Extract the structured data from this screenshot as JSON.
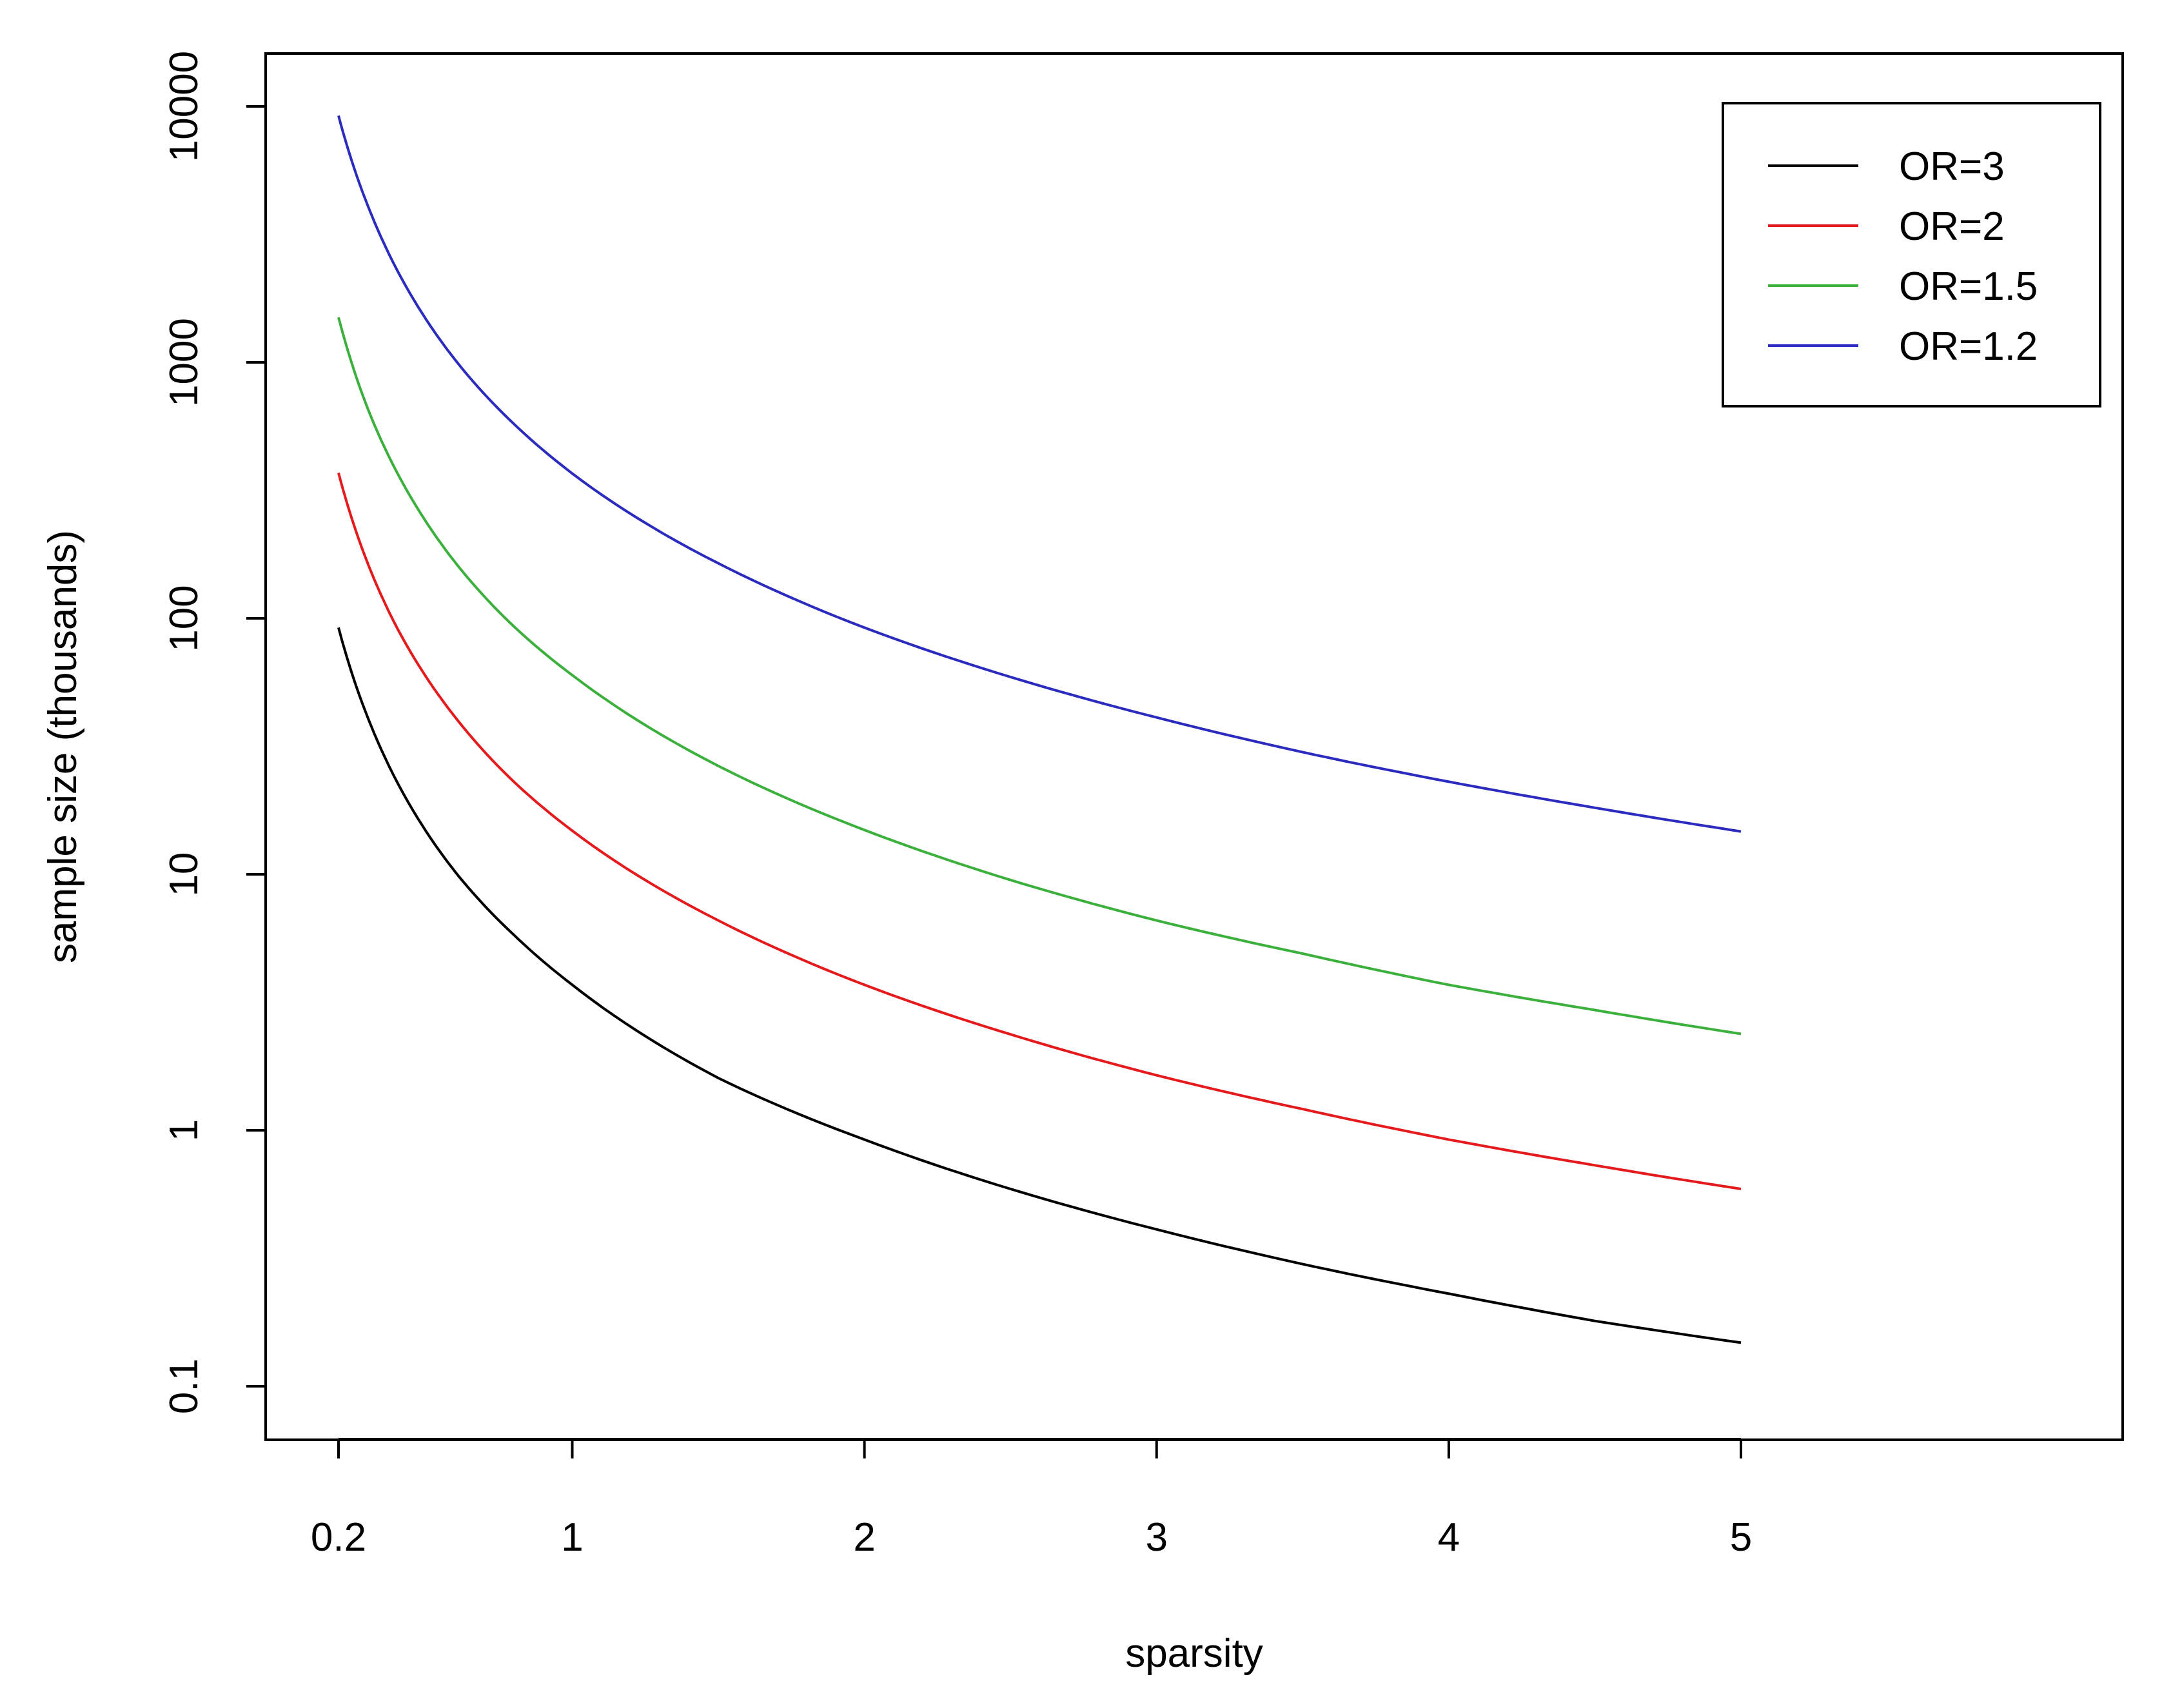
{
  "chart_data": {
    "type": "line",
    "title": "",
    "xlabel": "sparsity",
    "ylabel": "sample size (thousands)",
    "xlim": [
      0.2,
      5
    ],
    "ylim": [
      0.1,
      10000
    ],
    "yscale": "log",
    "grid": false,
    "legend_position": "top-right",
    "x_ticks": [
      0.2,
      1,
      2,
      3,
      4,
      5
    ],
    "x_tick_labels": [
      "0.2",
      "1",
      "2",
      "3",
      "4",
      "5"
    ],
    "y_ticks": [
      0.1,
      1,
      10,
      100,
      1000,
      10000
    ],
    "y_tick_labels": [
      "0.1",
      "1",
      "10",
      "100",
      "1000",
      "10000"
    ],
    "series": [
      {
        "name": "OR=3",
        "color": "#000000",
        "x": [
          0.2,
          0.3,
          0.4,
          0.5,
          0.6,
          0.8,
          1,
          1.5,
          2,
          2.5,
          3,
          3.5,
          4,
          4.5,
          5
        ],
        "values": [
          92,
          41,
          23,
          14.7,
          10.2,
          5.8,
          3.7,
          1.6,
          0.92,
          0.59,
          0.41,
          0.3,
          0.23,
          0.18,
          0.148
        ]
      },
      {
        "name": "OR=2",
        "color": "#e41a1c",
        "x": [
          0.2,
          0.3,
          0.4,
          0.5,
          0.6,
          0.8,
          1,
          1.5,
          2,
          2.5,
          3,
          3.5,
          4,
          4.5,
          5
        ],
        "values": [
          370,
          164,
          92,
          59,
          41,
          23,
          14.8,
          6.6,
          3.7,
          2.37,
          1.64,
          1.21,
          0.92,
          0.73,
          0.59
        ]
      },
      {
        "name": "OR=1.5",
        "color": "#3cb03c",
        "x": [
          0.2,
          0.3,
          0.4,
          0.5,
          0.6,
          0.8,
          1,
          1.5,
          2,
          2.5,
          3,
          3.5,
          4,
          4.5,
          5
        ],
        "values": [
          1500,
          660,
          372,
          238,
          165,
          93,
          60,
          26.5,
          14.9,
          9.5,
          6.6,
          4.9,
          3.7,
          2.95,
          2.38
        ]
      },
      {
        "name": "OR=1.2",
        "color": "#2b2bbf",
        "x": [
          0.2,
          0.3,
          0.4,
          0.5,
          0.6,
          0.8,
          1,
          1.5,
          2,
          2.5,
          3,
          3.5,
          4,
          4.5,
          5
        ],
        "values": [
          9200,
          4100,
          2300,
          1470,
          1020,
          575,
          368,
          164,
          92,
          59,
          41,
          30,
          23,
          18.2,
          14.7
        ]
      }
    ]
  }
}
